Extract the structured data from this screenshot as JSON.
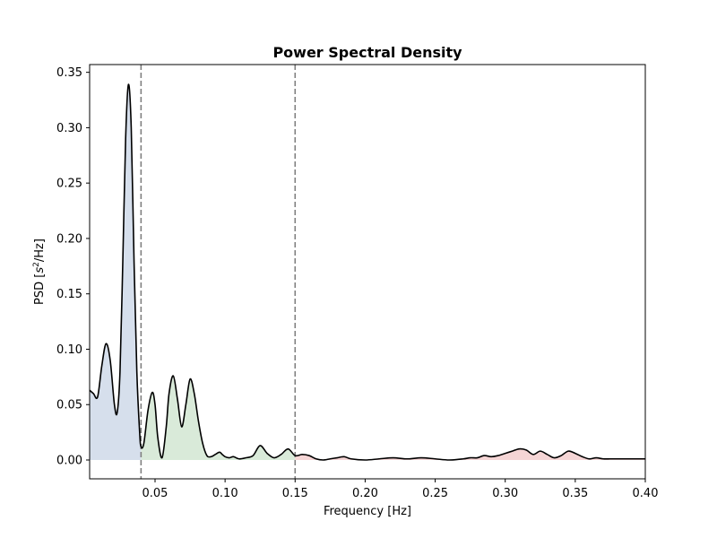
{
  "chart_data": {
    "type": "area",
    "title": "Power Spectral Density",
    "xlabel": "Frequency [Hz]",
    "ylabel_prefix": "PSD [",
    "ylabel_var": "s",
    "ylabel_exp": "2",
    "ylabel_suffix": "/Hz]",
    "xlim": [
      0.0033,
      0.4
    ],
    "ylim": [
      -0.017,
      0.357
    ],
    "x_ticks": [
      0.05,
      0.1,
      0.15,
      0.2,
      0.25,
      0.3,
      0.35,
      0.4
    ],
    "x_tick_labels": [
      "0.05",
      "0.10",
      "0.15",
      "0.20",
      "0.25",
      "0.30",
      "0.35",
      "0.40"
    ],
    "y_ticks": [
      0.0,
      0.05,
      0.1,
      0.15,
      0.2,
      0.25,
      0.3,
      0.35
    ],
    "y_tick_labels": [
      "0.00",
      "0.05",
      "0.10",
      "0.15",
      "0.20",
      "0.25",
      "0.30",
      "0.35"
    ],
    "vlines": [
      0.04,
      0.15
    ],
    "bands": [
      {
        "from": 0.0033,
        "to": 0.04,
        "color": "#d6dfec"
      },
      {
        "from": 0.04,
        "to": 0.15,
        "color": "#d9ead9"
      },
      {
        "from": 0.15,
        "to": 0.4,
        "color": "#f5d5d5"
      }
    ],
    "line_color": "#000000",
    "vline_color": "#808080",
    "grid": false,
    "x": [
      0.0033,
      0.006,
      0.009,
      0.012,
      0.015,
      0.018,
      0.021,
      0.023,
      0.025,
      0.027,
      0.029,
      0.031,
      0.033,
      0.035,
      0.037,
      0.039,
      0.04,
      0.042,
      0.045,
      0.048,
      0.05,
      0.052,
      0.055,
      0.058,
      0.06,
      0.063,
      0.066,
      0.069,
      0.072,
      0.075,
      0.078,
      0.081,
      0.084,
      0.087,
      0.09,
      0.093,
      0.096,
      0.098,
      0.1,
      0.103,
      0.106,
      0.11,
      0.115,
      0.12,
      0.125,
      0.13,
      0.135,
      0.14,
      0.145,
      0.15,
      0.155,
      0.16,
      0.165,
      0.17,
      0.175,
      0.18,
      0.185,
      0.19,
      0.2,
      0.21,
      0.22,
      0.23,
      0.24,
      0.25,
      0.26,
      0.27,
      0.275,
      0.28,
      0.285,
      0.29,
      0.295,
      0.3,
      0.305,
      0.31,
      0.315,
      0.32,
      0.325,
      0.33,
      0.335,
      0.34,
      0.345,
      0.35,
      0.355,
      0.36,
      0.365,
      0.37,
      0.375,
      0.38,
      0.39,
      0.4
    ],
    "y": [
      0.063,
      0.06,
      0.057,
      0.085,
      0.105,
      0.09,
      0.05,
      0.043,
      0.08,
      0.18,
      0.29,
      0.339,
      0.3,
      0.18,
      0.08,
      0.025,
      0.012,
      0.015,
      0.045,
      0.061,
      0.05,
      0.02,
      0.002,
      0.03,
      0.06,
      0.076,
      0.055,
      0.03,
      0.05,
      0.073,
      0.06,
      0.035,
      0.015,
      0.004,
      0.003,
      0.005,
      0.007,
      0.005,
      0.003,
      0.002,
      0.003,
      0.001,
      0.002,
      0.004,
      0.013,
      0.006,
      0.002,
      0.005,
      0.01,
      0.004,
      0.005,
      0.004,
      0.001,
      0.0,
      0.001,
      0.002,
      0.003,
      0.001,
      0.0,
      0.001,
      0.002,
      0.001,
      0.002,
      0.001,
      0.0,
      0.001,
      0.002,
      0.002,
      0.004,
      0.003,
      0.004,
      0.006,
      0.008,
      0.01,
      0.009,
      0.005,
      0.008,
      0.005,
      0.002,
      0.004,
      0.008,
      0.006,
      0.003,
      0.001,
      0.002,
      0.001,
      0.001,
      0.001,
      0.001,
      0.001
    ]
  }
}
